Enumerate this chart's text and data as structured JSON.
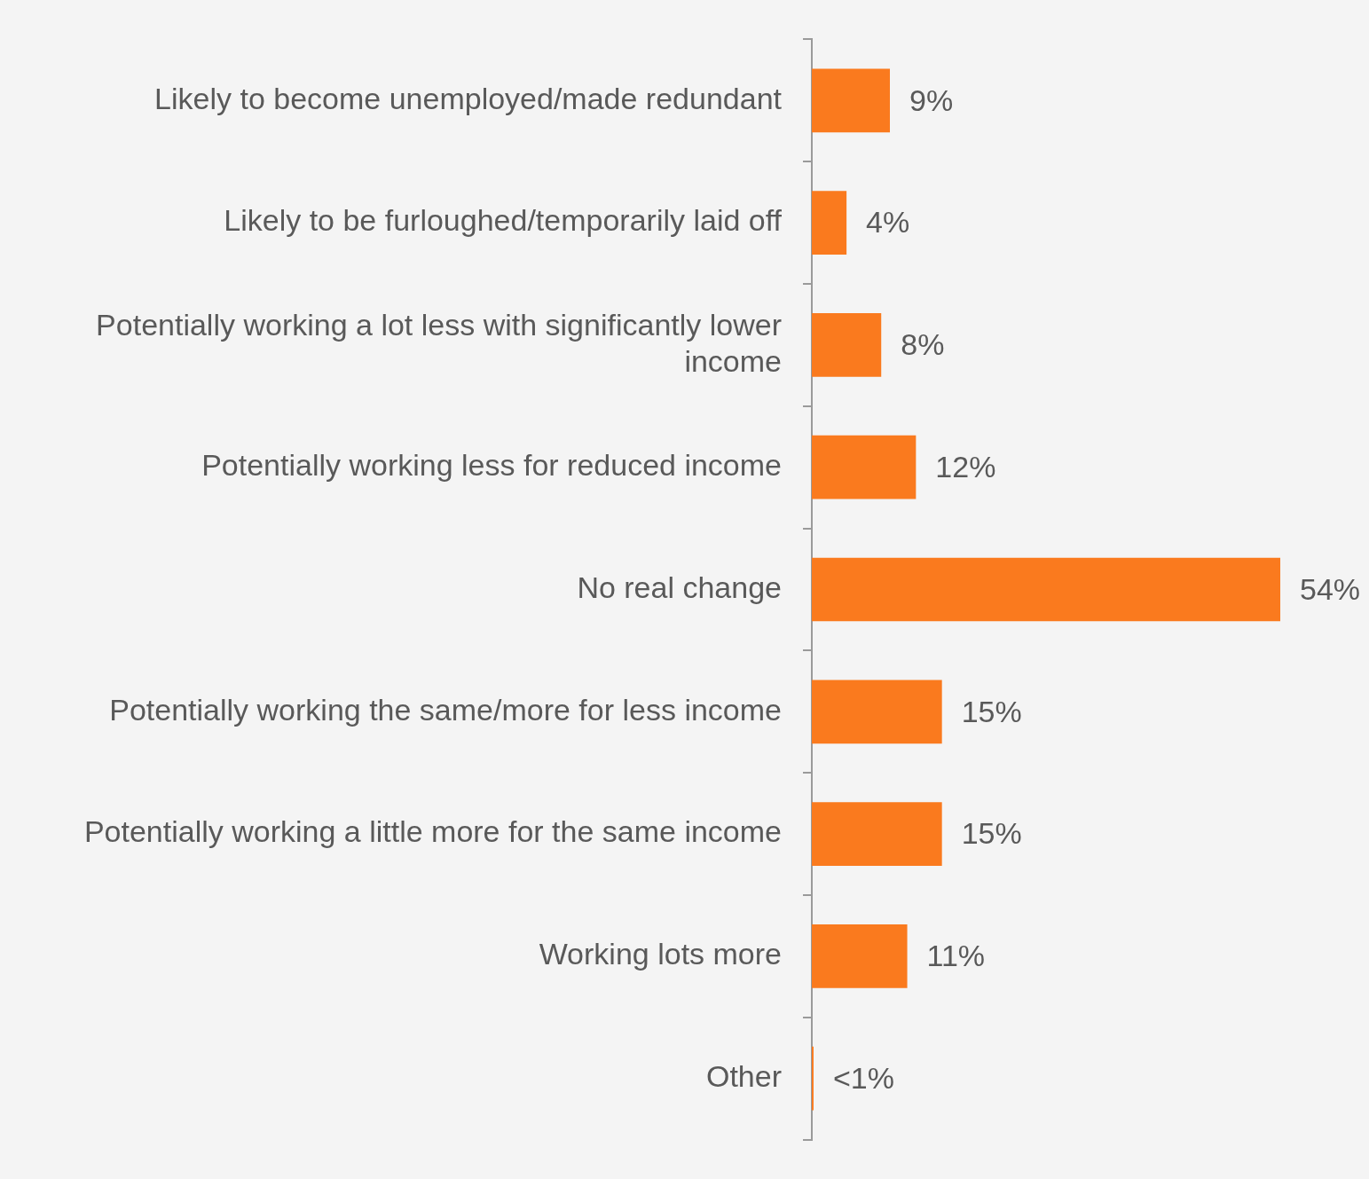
{
  "chart_data": {
    "type": "bar",
    "orientation": "horizontal",
    "categories": [
      "Likely to become unemployed/made redundant",
      "Likely to be furloughed/temporarily laid off",
      "Potentially working a lot less with significantly lower income",
      "Potentially working less for reduced income",
      "No real change",
      "Potentially working the same/more for less income",
      "Potentially working a little more for the same income",
      "Working lots more",
      "Other"
    ],
    "values": [
      9,
      4,
      8,
      12,
      54,
      15,
      15,
      11,
      0.2
    ],
    "value_labels": [
      "9%",
      "4%",
      "8%",
      "12%",
      "54%",
      "15%",
      "15%",
      "11%",
      "<1%"
    ],
    "color": "#fa7a1e",
    "legend": false
  }
}
